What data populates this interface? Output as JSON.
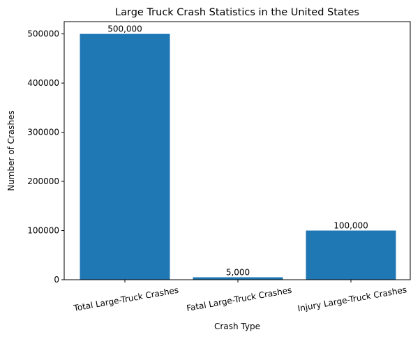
{
  "chart_data": {
    "type": "bar",
    "title": "Large Truck Crash Statistics in the United States",
    "xlabel": "Crash Type",
    "ylabel": "Number of Crashes",
    "categories": [
      "Total Large-Truck Crashes",
      "Fatal Large-Truck Crashes",
      "Injury Large-Truck Crashes"
    ],
    "values": [
      500000,
      5000,
      100000
    ],
    "data_labels": [
      "500,000",
      "5,000",
      "100,000"
    ],
    "yticks": [
      0,
      100000,
      200000,
      300000,
      400000,
      500000
    ],
    "ytick_labels": [
      "0",
      "100000",
      "200000",
      "300000",
      "400000",
      "500000"
    ],
    "ylim": [
      0,
      525000
    ],
    "xtick_rotation": -10,
    "bar_color": "#1f77b4",
    "grid": false,
    "legend": null
  }
}
